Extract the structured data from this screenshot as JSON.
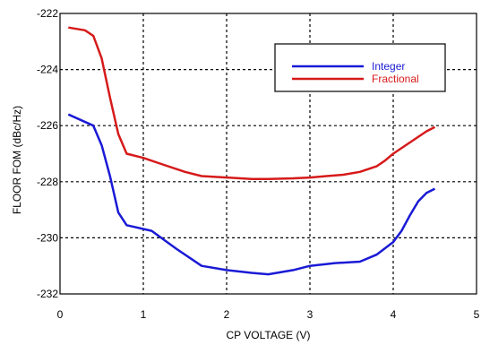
{
  "chart_data": {
    "type": "line",
    "title": "",
    "xlabel": "CP VOLTAGE (V)",
    "ylabel": "FLOOR FOM (dBc/Hz)",
    "xlim": [
      0,
      5
    ],
    "ylim": [
      -232,
      -222
    ],
    "xticks": [
      "0",
      "1",
      "2",
      "3",
      "4",
      "5"
    ],
    "yticks": [
      "-222",
      "-224",
      "-226",
      "-228",
      "-230",
      "-232"
    ],
    "grid": true,
    "legend_position": "top-right",
    "series": [
      {
        "name": "Integer",
        "color": "#1a1ad6",
        "x": [
          0.1,
          0.4,
          0.5,
          0.6,
          0.7,
          0.8,
          1.1,
          1.4,
          1.7,
          2.0,
          2.3,
          2.5,
          2.8,
          3.0,
          3.3,
          3.6,
          3.8,
          4.0,
          4.1,
          4.2,
          4.3,
          4.4,
          4.5
        ],
        "y": [
          -225.6,
          -226.0,
          -226.7,
          -227.8,
          -229.1,
          -229.55,
          -229.75,
          -230.4,
          -231.0,
          -231.15,
          -231.25,
          -231.3,
          -231.15,
          -231.0,
          -230.9,
          -230.85,
          -230.6,
          -230.15,
          -229.75,
          -229.2,
          -228.7,
          -228.4,
          -228.25
        ]
      },
      {
        "name": "Fractional",
        "color": "#d61a1a",
        "x": [
          0.1,
          0.3,
          0.4,
          0.5,
          0.6,
          0.7,
          0.8,
          1.0,
          1.2,
          1.5,
          1.7,
          2.0,
          2.3,
          2.5,
          2.8,
          3.0,
          3.2,
          3.4,
          3.6,
          3.7,
          3.8,
          3.9,
          4.0,
          4.2,
          4.4,
          4.5
        ],
        "y": [
          -222.5,
          -222.6,
          -222.8,
          -223.6,
          -225.0,
          -226.3,
          -227.0,
          -227.15,
          -227.35,
          -227.65,
          -227.8,
          -227.85,
          -227.9,
          -227.9,
          -227.88,
          -227.85,
          -227.8,
          -227.75,
          -227.65,
          -227.55,
          -227.45,
          -227.25,
          -227.0,
          -226.6,
          -226.2,
          -226.05
        ]
      }
    ]
  }
}
